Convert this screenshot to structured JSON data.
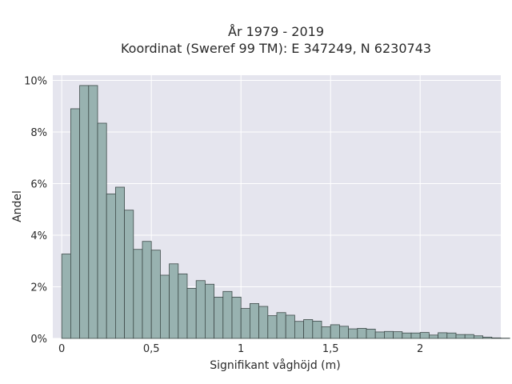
{
  "chart_data": {
    "type": "bar",
    "title_line1": "År 1979 - 2019",
    "title_line2": "Koordinat (Sweref 99 TM): E 347249, N 6230743",
    "xlabel": "Signifikant våghöjd (m)",
    "ylabel": "Andel",
    "xlim": [
      -0.05,
      2.45
    ],
    "ylim": [
      0,
      0.102
    ],
    "x_ticks": [
      0,
      0.5,
      1,
      1.5,
      2
    ],
    "x_tick_labels": [
      "0",
      "0,5",
      "1",
      "1,5",
      "2"
    ],
    "y_ticks": [
      0,
      0.02,
      0.04,
      0.06,
      0.08,
      0.1
    ],
    "y_tick_labels": [
      "0%",
      "2%",
      "4%",
      "6%",
      "8%",
      "10%"
    ],
    "bin_width": 0.05,
    "bin_start": 0.0,
    "values": [
      0.0327,
      0.089,
      0.098,
      0.098,
      0.0834,
      0.056,
      0.0586,
      0.0497,
      0.0345,
      0.0376,
      0.0342,
      0.0245,
      0.0289,
      0.025,
      0.0194,
      0.0224,
      0.021,
      0.016,
      0.0182,
      0.016,
      0.0116,
      0.0135,
      0.0124,
      0.0088,
      0.01,
      0.009,
      0.0066,
      0.0073,
      0.0067,
      0.0045,
      0.0053,
      0.0047,
      0.0037,
      0.0039,
      0.0036,
      0.0025,
      0.0027,
      0.0026,
      0.0021,
      0.0021,
      0.0023,
      0.0013,
      0.0022,
      0.0021,
      0.0015,
      0.0015,
      0.001,
      0.0005,
      0.0002,
      0.0001
    ],
    "colors": {
      "plot_bg": "#e5e5ee",
      "grid": "#ffffff",
      "bar_fill": "#98b2b0",
      "bar_stroke": "#3f4b4a"
    }
  }
}
